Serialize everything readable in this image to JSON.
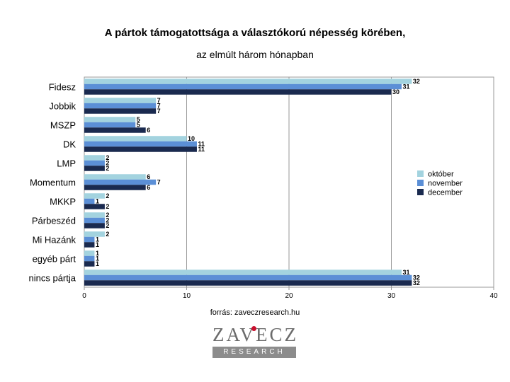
{
  "title_line1": "A pártok támogatottsága a választókorú népesség körében,",
  "title_line2": "az elmúlt három hónapban",
  "source": "forrás: zaveczresearch.hu",
  "logo": {
    "top": "ZAVECZ",
    "bottom": "RESEARCH"
  },
  "colors": {
    "oktober": "#a3d3df",
    "november": "#5b8fd6",
    "december": "#1a2a4f"
  },
  "chart_data": {
    "type": "bar",
    "orientation": "horizontal",
    "categories": [
      "Fidesz",
      "Jobbik",
      "MSZP",
      "DK",
      "LMP",
      "Momentum",
      "MKKP",
      "Párbeszéd",
      "Mi Hazánk",
      "egyéb párt",
      "nincs pártja"
    ],
    "series": [
      {
        "name": "október",
        "color": "#a3d3df",
        "values": [
          32,
          7,
          5,
          10,
          2,
          6,
          2,
          2,
          2,
          1,
          31
        ]
      },
      {
        "name": "november",
        "color": "#5b8fd6",
        "values": [
          31,
          7,
          5,
          11,
          2,
          7,
          1,
          2,
          1,
          1,
          32
        ]
      },
      {
        "name": "december",
        "color": "#1a2a4f",
        "values": [
          30,
          7,
          6,
          11,
          2,
          6,
          2,
          2,
          1,
          1,
          32
        ]
      }
    ],
    "xlim": [
      0,
      40
    ],
    "xticks": [
      0,
      10,
      20,
      30,
      40
    ],
    "grid": true,
    "legend_position": "right"
  }
}
